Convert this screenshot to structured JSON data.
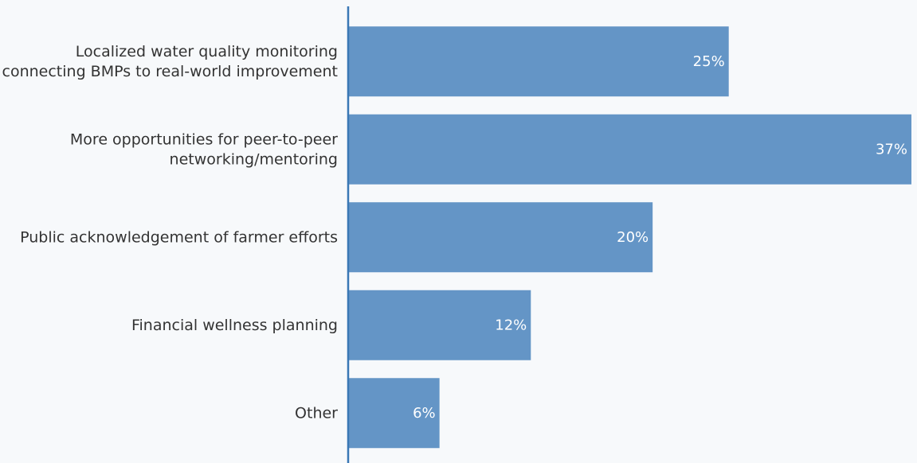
{
  "chart_data": {
    "type": "bar",
    "orientation": "horizontal",
    "categories": [
      [
        "Localized water quality monitoring",
        "connecting BMPs to real-world improvement"
      ],
      [
        "More opportunities for peer-to-peer",
        "networking/mentoring"
      ],
      [
        "Public acknowledgement of farmer efforts"
      ],
      [
        "Financial wellness planning"
      ],
      [
        "Other"
      ]
    ],
    "values": [
      25,
      37,
      20,
      12,
      6
    ],
    "value_labels": [
      "25%",
      "37%",
      "20%",
      "12%",
      "6%"
    ],
    "xlim": [
      0,
      37
    ],
    "title": "",
    "xlabel": "",
    "ylabel": "",
    "grid": false,
    "legend": "none",
    "colors": {
      "bar": "#6495c6",
      "axis": "#3a78b5",
      "background": "#f7f9fb",
      "category_text": "#333333",
      "value_text": "#ffffff"
    }
  }
}
